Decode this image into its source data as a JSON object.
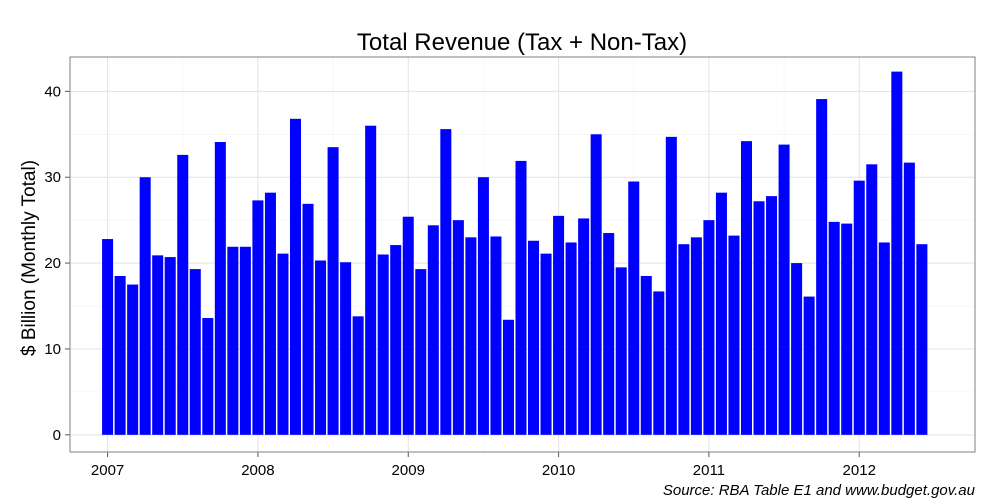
{
  "chart_data": {
    "type": "bar",
    "title": "Total Revenue (Tax + Non-Tax)",
    "xlabel": "",
    "ylabel": "$ Billion (Monthly Total)",
    "source": "Source: RBA Table E1 and www.budget.gov.au",
    "bar_color": "#0000ff",
    "grid": true,
    "ylim": [
      -2,
      44
    ],
    "yticks": [
      0,
      10,
      20,
      30,
      40
    ],
    "xlim": [
      2006.75,
      2012.77
    ],
    "xticks": [
      2007,
      2008,
      2009,
      2010,
      2011,
      2012
    ],
    "xtick_labels": [
      "2007",
      "2008",
      "2009",
      "2010",
      "2011",
      "2012"
    ],
    "start": {
      "year": 2007,
      "month": 1
    },
    "values": [
      22.8,
      18.5,
      17.5,
      30.0,
      20.9,
      20.7,
      32.6,
      19.3,
      13.6,
      34.1,
      21.9,
      21.9,
      27.3,
      28.2,
      21.1,
      36.8,
      26.9,
      20.3,
      33.5,
      20.1,
      13.8,
      36.0,
      21.0,
      22.1,
      25.4,
      19.3,
      24.4,
      35.6,
      25.0,
      23.0,
      30.0,
      23.1,
      13.4,
      31.9,
      22.6,
      21.1,
      25.5,
      22.4,
      25.2,
      35.0,
      23.5,
      19.5,
      29.5,
      18.5,
      16.7,
      34.7,
      22.2,
      23.0,
      25.0,
      28.2,
      23.2,
      34.2,
      27.2,
      27.8,
      33.8,
      20.0,
      16.1,
      39.1,
      24.8,
      24.6,
      29.6,
      31.5,
      22.4,
      42.3,
      31.7,
      22.2
    ]
  }
}
